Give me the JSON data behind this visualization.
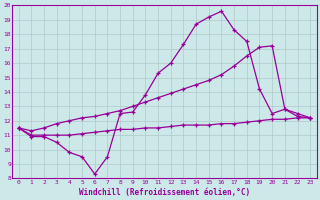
{
  "background_color": "#cce8e8",
  "grid_color": "#b0c8c8",
  "line_color": "#990099",
  "xlabel": "Windchill (Refroidissement éolien,°C)",
  "xlim": [
    -0.5,
    23.5
  ],
  "ylim": [
    8,
    20
  ],
  "yticks": [
    8,
    9,
    10,
    11,
    12,
    13,
    14,
    15,
    16,
    17,
    18,
    19,
    20
  ],
  "xticks": [
    0,
    1,
    2,
    3,
    4,
    5,
    6,
    7,
    8,
    9,
    10,
    11,
    12,
    13,
    14,
    15,
    16,
    17,
    18,
    19,
    20,
    21,
    22,
    23
  ],
  "line1_x": [
    0,
    1,
    2,
    3,
    4,
    5,
    6,
    7,
    8,
    9,
    10,
    11,
    12,
    13,
    14,
    15,
    16,
    17,
    18,
    19,
    20,
    21,
    22,
    23
  ],
  "line1_y": [
    11.5,
    10.9,
    10.9,
    10.5,
    9.8,
    9.5,
    8.3,
    9.5,
    12.5,
    12.6,
    13.8,
    15.3,
    16.0,
    17.3,
    18.7,
    19.2,
    19.6,
    18.3,
    17.5,
    14.2,
    12.5,
    12.8,
    12.3,
    12.2
  ],
  "line2_x": [
    0,
    1,
    2,
    3,
    4,
    5,
    6,
    7,
    8,
    9,
    10,
    11,
    12,
    13,
    14,
    15,
    16,
    17,
    18,
    19,
    20,
    21,
    22,
    23
  ],
  "line2_y": [
    11.5,
    11.0,
    11.0,
    11.0,
    11.0,
    11.1,
    11.2,
    11.3,
    11.4,
    11.4,
    11.5,
    11.5,
    11.6,
    11.7,
    11.7,
    11.7,
    11.8,
    11.8,
    11.9,
    12.0,
    12.1,
    12.1,
    12.2,
    12.2
  ],
  "line3_x": [
    0,
    1,
    2,
    3,
    4,
    5,
    6,
    7,
    8,
    9,
    10,
    11,
    12,
    13,
    14,
    15,
    16,
    17,
    18,
    19,
    20,
    21,
    22,
    23
  ],
  "line3_y": [
    11.5,
    11.3,
    11.5,
    11.8,
    12.0,
    12.2,
    12.3,
    12.5,
    12.7,
    13.0,
    13.3,
    13.6,
    13.9,
    14.2,
    14.5,
    14.8,
    15.2,
    15.8,
    16.5,
    17.1,
    17.2,
    12.8,
    12.5,
    12.2
  ]
}
